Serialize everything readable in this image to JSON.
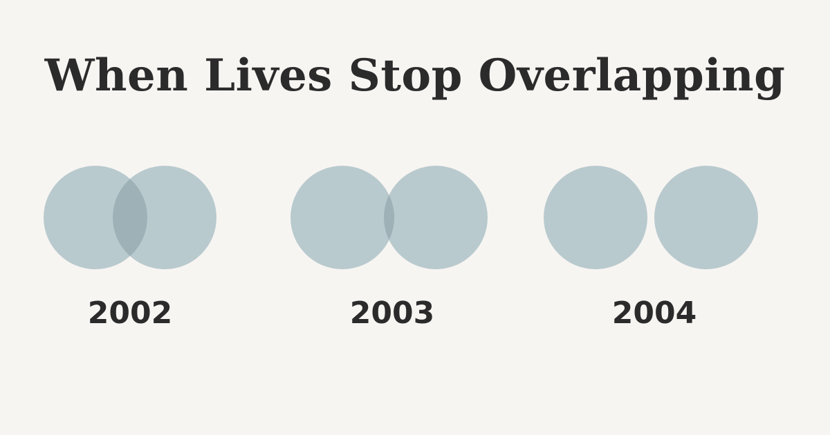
{
  "title": "When Lives Stop Overlapping",
  "colors": {
    "background": "#f7f5f2",
    "circle": "#b9cace",
    "overlap": "#9db1b6",
    "text": "#2b2b2b"
  },
  "stages": [
    {
      "year": "2002",
      "overlap": "large"
    },
    {
      "year": "2003",
      "overlap": "small"
    },
    {
      "year": "2004",
      "overlap": "none"
    }
  ]
}
